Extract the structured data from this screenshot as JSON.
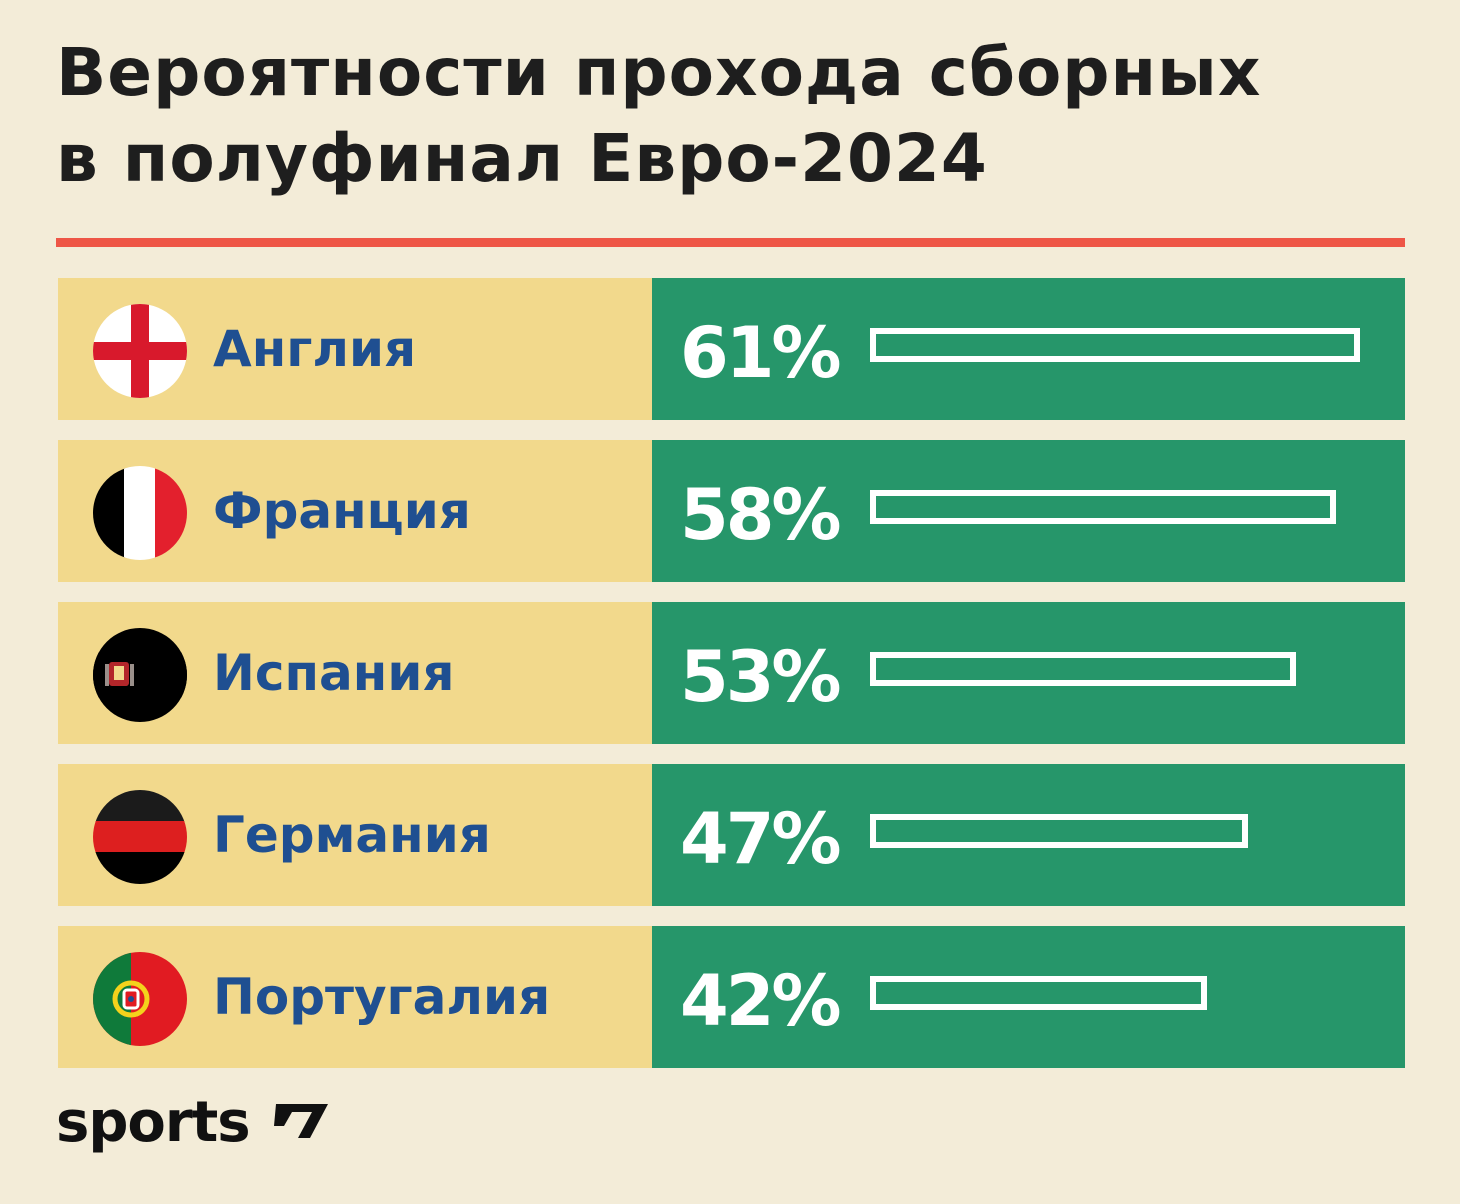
{
  "title_line1": "Вероятности прохода сборных",
  "title_line2": "в полуфинал Евро-2024",
  "chart_data": {
    "type": "bar",
    "title": "Вероятности прохода сборных в полуфинал Евро-2024",
    "categories": [
      "Англия",
      "Франция",
      "Испания",
      "Германия",
      "Португалия"
    ],
    "values": [
      61,
      58,
      53,
      47,
      42
    ],
    "value_labels": [
      "61%",
      "58%",
      "53%",
      "47%",
      "42%"
    ],
    "xlim": [
      0,
      61
    ],
    "flag_icons": [
      "england-flag-icon",
      "france-flag-icon",
      "spain-flag-icon",
      "germany-flag-icon",
      "portugal-flag-icon"
    ]
  },
  "colors": {
    "background": "#f3ecd8",
    "accent_rule": "#ee5646",
    "country_panel": "#f2d98c",
    "value_panel": "#26966a",
    "country_text": "#1f4f91"
  },
  "logo": {
    "text": "sports",
    "icon": "sports-logo-mark-icon"
  }
}
